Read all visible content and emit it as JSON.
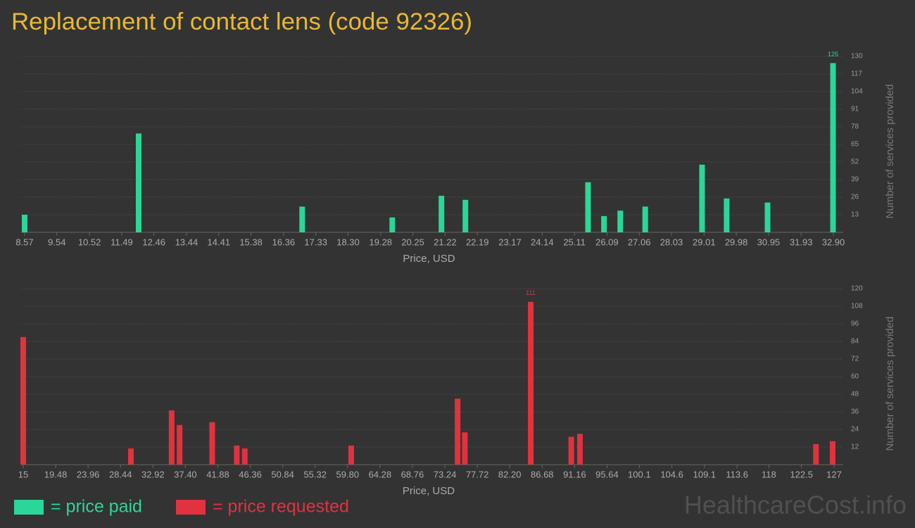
{
  "title": "Replacement of contact lens (code 92326)",
  "watermark": "HealthcareCost.info",
  "chart_data": [
    {
      "type": "bar",
      "xlabel": "Price, USD",
      "ylabel": "Number of services provided",
      "grid": true,
      "x": [
        8.57,
        12.0,
        16.92,
        19.63,
        21.11,
        21.83,
        25.52,
        26.0,
        26.49,
        27.24,
        28.95,
        29.69,
        30.92,
        32.89
      ],
      "series": [
        {
          "name": "= price paid",
          "color": "#2bd699",
          "values": [
            13,
            73,
            19,
            11,
            27,
            24,
            37,
            12,
            16,
            19,
            50,
            25,
            22,
            125
          ]
        }
      ],
      "xlim": [
        8.57,
        32.9
      ],
      "xticks": [
        8.57,
        9.54,
        10.52,
        11.49,
        12.46,
        13.44,
        14.41,
        15.38,
        16.36,
        17.33,
        {
          "value": 18.3,
          "label": "18.30"
        },
        19.28,
        20.25,
        21.22,
        22.19,
        23.17,
        24.14,
        25.11,
        26.09,
        27.06,
        28.03,
        29.01,
        29.98,
        30.95,
        31.93,
        {
          "value": 32.9,
          "label": "32.90"
        }
      ],
      "ylim": [
        0,
        130
      ],
      "yticks": [
        13,
        26,
        39,
        52,
        65,
        78,
        91,
        104,
        117,
        130
      ]
    },
    {
      "type": "bar",
      "xlabel": "Price, USD",
      "ylabel": "Number of services provided",
      "grid": true,
      "x": [
        15,
        29.87,
        35.5,
        36.6,
        41.1,
        44.5,
        45.6,
        60.3,
        75.0,
        76.0,
        85.1,
        90.7,
        91.9,
        124.5,
        126.8
      ],
      "series": [
        {
          "name": "= price requested",
          "color": "#e0323f",
          "values": [
            87,
            11,
            37,
            27,
            29,
            13,
            11,
            13,
            45,
            22,
            111,
            19,
            21,
            14,
            16
          ]
        }
      ],
      "xlim": [
        15,
        127
      ],
      "xticks": [
        15,
        19.48,
        23.96,
        28.44,
        32.92,
        {
          "value": 37.4,
          "label": "37.40"
        },
        41.88,
        46.36,
        50.84,
        55.32,
        {
          "value": 59.8,
          "label": "59.80"
        },
        64.28,
        68.76,
        73.24,
        77.72,
        {
          "value": 82.2,
          "label": "82.20"
        },
        86.68,
        91.16,
        95.64,
        100.1,
        104.6,
        109.1,
        113.6,
        118,
        122.5,
        127
      ],
      "ylim": [
        0,
        120
      ],
      "yticks": [
        12,
        24,
        36,
        48,
        60,
        72,
        84,
        96,
        108,
        120
      ]
    }
  ]
}
